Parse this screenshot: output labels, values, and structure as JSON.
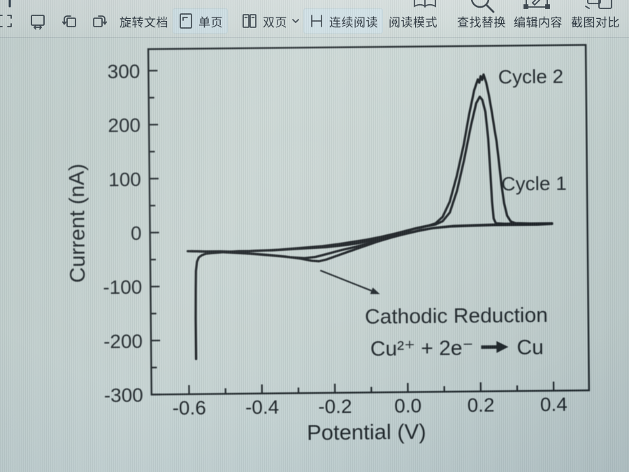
{
  "app": {
    "name": "pdf-reader-toolbar",
    "toolbar": {
      "items": [
        {
          "id": "select-region",
          "label": "",
          "icon": "select-region"
        },
        {
          "id": "fit-width",
          "label": "",
          "icon": "fit-width"
        },
        {
          "id": "rotate-left",
          "label": "",
          "icon": "rotate-left"
        },
        {
          "id": "rotate-right",
          "label": "",
          "icon": "rotate-right"
        },
        {
          "id": "rotate-document",
          "label": "旋转文档"
        },
        {
          "id": "single-page",
          "label": "单页",
          "icon": "single-page",
          "active": true
        },
        {
          "id": "double-page",
          "label": "双页",
          "icon": "double-page",
          "has_dropdown": true
        },
        {
          "id": "continuous-read",
          "label": "连续阅读",
          "icon": "continuous-read",
          "active": true
        },
        {
          "id": "read-mode",
          "label": "阅读模式",
          "icon": "book"
        },
        {
          "id": "find-replace",
          "label": "查找替换",
          "icon": "magnifier"
        },
        {
          "id": "edit-content",
          "label": "编辑内容",
          "icon": "edit-pencil"
        },
        {
          "id": "screenshot-compare",
          "label": "截图对比",
          "icon": "compare"
        }
      ]
    }
  },
  "colors": {
    "page_bg": "#c6d3d0",
    "toolbar_bg": "#d2dcda",
    "highlight_bg": "#cde0e8",
    "ink": "#1b2226",
    "curve": "#14191d"
  },
  "chart_data": {
    "type": "line",
    "title": "",
    "xlabel": "Potential (V)",
    "ylabel": "Current (nA)",
    "xlim": [
      -0.703,
      0.497
    ],
    "ylim": [
      -300,
      340
    ],
    "grid": false,
    "legend_position": "on-plot-labels",
    "xticks": {
      "values": [
        -0.6,
        -0.4,
        -0.2,
        0.0,
        0.2,
        0.4
      ],
      "labels": [
        "-0.6",
        "-0.4",
        "-0.2",
        "0.0",
        "0.2",
        "0.4"
      ],
      "minor": [
        -0.5,
        -0.3,
        -0.1,
        0.1,
        0.3
      ]
    },
    "yticks": {
      "values": [
        300,
        200,
        100,
        0,
        -100,
        -200,
        -300
      ],
      "labels": [
        "300",
        "200",
        "100",
        "0",
        "-100",
        "-200",
        "-300"
      ],
      "minor": [
        250,
        150,
        50,
        -50,
        -150,
        -250
      ]
    },
    "series": [
      {
        "name": "Cycle 1",
        "points": [
          [
            -0.58,
            -235
          ],
          [
            -0.58,
            -160
          ],
          [
            -0.579,
            -105
          ],
          [
            -0.578,
            -72
          ],
          [
            -0.575,
            -55
          ],
          [
            -0.57,
            -47
          ],
          [
            -0.562,
            -43
          ],
          [
            -0.55,
            -40
          ],
          [
            -0.535,
            -39
          ],
          [
            -0.515,
            -38
          ],
          [
            -0.49,
            -37
          ],
          [
            -0.46,
            -36
          ],
          [
            -0.43,
            -36
          ],
          [
            -0.4,
            -35
          ],
          [
            -0.37,
            -35
          ],
          [
            -0.34,
            -34
          ],
          [
            -0.31,
            -33
          ],
          [
            -0.28,
            -32
          ],
          [
            -0.25,
            -31
          ],
          [
            -0.22,
            -30
          ],
          [
            -0.19,
            -28
          ],
          [
            -0.16,
            -26
          ],
          [
            -0.13,
            -23
          ],
          [
            -0.1,
            -19
          ],
          [
            -0.07,
            -15
          ],
          [
            -0.04,
            -10
          ],
          [
            -0.01,
            -4
          ],
          [
            0.02,
            2
          ],
          [
            0.05,
            6
          ],
          [
            0.08,
            10
          ],
          [
            0.1,
            16
          ],
          [
            0.12,
            32
          ],
          [
            0.14,
            72
          ],
          [
            0.16,
            128
          ],
          [
            0.18,
            192
          ],
          [
            0.195,
            234
          ],
          [
            0.205,
            246
          ],
          [
            0.212,
            240
          ],
          [
            0.22,
            218
          ],
          [
            0.227,
            168
          ],
          [
            0.232,
            105
          ],
          [
            0.236,
            52
          ],
          [
            0.24,
            20
          ],
          [
            0.246,
            11
          ],
          [
            0.27,
            10
          ],
          [
            0.31,
            10
          ],
          [
            0.36,
            10
          ],
          [
            0.4,
            10
          ],
          [
            0.37,
            9
          ],
          [
            0.31,
            9
          ],
          [
            0.25,
            9
          ],
          [
            0.19,
            8
          ],
          [
            0.13,
            7
          ],
          [
            0.08,
            4
          ],
          [
            0.04,
            0
          ],
          [
            0.0,
            -6
          ],
          [
            -0.04,
            -13
          ],
          [
            -0.08,
            -21
          ],
          [
            -0.12,
            -30
          ],
          [
            -0.16,
            -39
          ],
          [
            -0.19,
            -46
          ],
          [
            -0.22,
            -53
          ],
          [
            -0.24,
            -56
          ],
          [
            -0.26,
            -55
          ],
          [
            -0.29,
            -51
          ],
          [
            -0.33,
            -47
          ],
          [
            -0.37,
            -44
          ],
          [
            -0.42,
            -41
          ],
          [
            -0.47,
            -39
          ],
          [
            -0.52,
            -37
          ],
          [
            -0.56,
            -36
          ],
          [
            -0.59,
            -35
          ]
        ]
      },
      {
        "name": "Cycle 2",
        "points": [
          [
            -0.59,
            -35
          ],
          [
            -0.55,
            -36
          ],
          [
            -0.51,
            -36
          ],
          [
            -0.47,
            -37
          ],
          [
            -0.43,
            -36
          ],
          [
            -0.39,
            -35
          ],
          [
            -0.35,
            -34
          ],
          [
            -0.31,
            -32
          ],
          [
            -0.27,
            -30
          ],
          [
            -0.23,
            -28
          ],
          [
            -0.19,
            -25
          ],
          [
            -0.15,
            -21
          ],
          [
            -0.11,
            -17
          ],
          [
            -0.07,
            -12
          ],
          [
            -0.03,
            -6
          ],
          [
            0.0,
            -1
          ],
          [
            0.03,
            4
          ],
          [
            0.06,
            8
          ],
          [
            0.08,
            12
          ],
          [
            0.1,
            24
          ],
          [
            0.12,
            52
          ],
          [
            0.14,
            100
          ],
          [
            0.16,
            158
          ],
          [
            0.175,
            212
          ],
          [
            0.19,
            258
          ],
          [
            0.2,
            278
          ],
          [
            0.204,
            272
          ],
          [
            0.208,
            284
          ],
          [
            0.212,
            277
          ],
          [
            0.216,
            287
          ],
          [
            0.223,
            272
          ],
          [
            0.23,
            249
          ],
          [
            0.238,
            216
          ],
          [
            0.245,
            184
          ],
          [
            0.25,
            163
          ],
          [
            0.256,
            124
          ],
          [
            0.262,
            84
          ],
          [
            0.269,
            48
          ],
          [
            0.277,
            25
          ],
          [
            0.287,
            14
          ],
          [
            0.3,
            11
          ],
          [
            0.34,
            10
          ],
          [
            0.38,
            10
          ],
          [
            0.4,
            9
          ],
          [
            0.36,
            8
          ],
          [
            0.3,
            8
          ],
          [
            0.24,
            8
          ],
          [
            0.18,
            7
          ],
          [
            0.12,
            6
          ],
          [
            0.07,
            3
          ],
          [
            0.03,
            -2
          ],
          [
            -0.01,
            -8
          ],
          [
            -0.06,
            -16
          ],
          [
            -0.1,
            -23
          ],
          [
            -0.14,
            -30
          ],
          [
            -0.18,
            -36
          ],
          [
            -0.22,
            -43
          ],
          [
            -0.25,
            -48
          ],
          [
            -0.28,
            -50
          ],
          [
            -0.32,
            -48
          ],
          [
            -0.36,
            -45
          ],
          [
            -0.41,
            -42
          ],
          [
            -0.46,
            -39
          ],
          [
            -0.51,
            -37
          ],
          [
            -0.55,
            -36
          ],
          [
            -0.6,
            -35
          ]
        ]
      }
    ],
    "annotations": {
      "cycle2_label": {
        "text": "Cycle 2",
        "x": 0.256,
        "y": 283
      },
      "cycle1_label": {
        "text": "Cycle 1",
        "x": 0.262,
        "y": 85
      },
      "note_line1": {
        "text": "Cathodic Reduction",
        "x": 0.135,
        "y": -158
      },
      "reaction": {
        "full": "Cu²⁺ + 2e⁻ ➔ Cu",
        "lhs": "Cu²⁺ + 2e⁻",
        "rhs": "Cu",
        "x": 0.137,
        "y": -218
      },
      "pointer_arrow": {
        "x1": -0.237,
        "y1": -73,
        "x2": -0.074,
        "y2": -118
      }
    }
  }
}
